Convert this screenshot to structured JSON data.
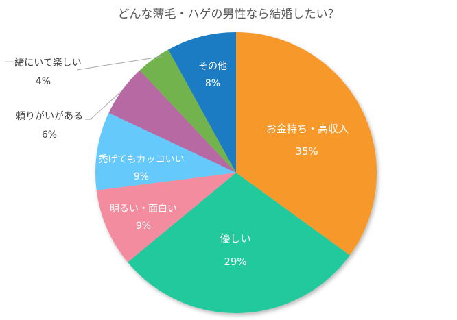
{
  "chart_data": {
    "type": "pie",
    "title": "どんな薄毛・ハゲの男性なら結婚したい？",
    "start_angle_deg": 0,
    "direction": "clockwise",
    "categories": [
      "お金持ち・高収入",
      "優しい",
      "明るい・面白い",
      "禿げてもカッコいい",
      "頼りがいがある",
      "一緒にいて楽しい",
      "その他"
    ],
    "values": [
      35,
      29,
      9,
      9,
      6,
      4,
      8
    ],
    "unit": "%",
    "colors": [
      "#F7992B",
      "#21C99D",
      "#F48CA0",
      "#66C9FC",
      "#B669A2",
      "#72B34E",
      "#1A7CC3"
    ],
    "labels": [
      {
        "name": "お金持ち・高収入",
        "pct": "35%"
      },
      {
        "name": "優しい",
        "pct": "29%"
      },
      {
        "name": "明るい・面白い",
        "pct": "9%"
      },
      {
        "name": "禿げてもカッコいい",
        "pct": "9%"
      },
      {
        "name": "頼りがいがある",
        "pct": "6%"
      },
      {
        "name": "一緒にいて楽しい",
        "pct": "4%"
      },
      {
        "name": "その他",
        "pct": "8%"
      }
    ],
    "legend": "none"
  }
}
